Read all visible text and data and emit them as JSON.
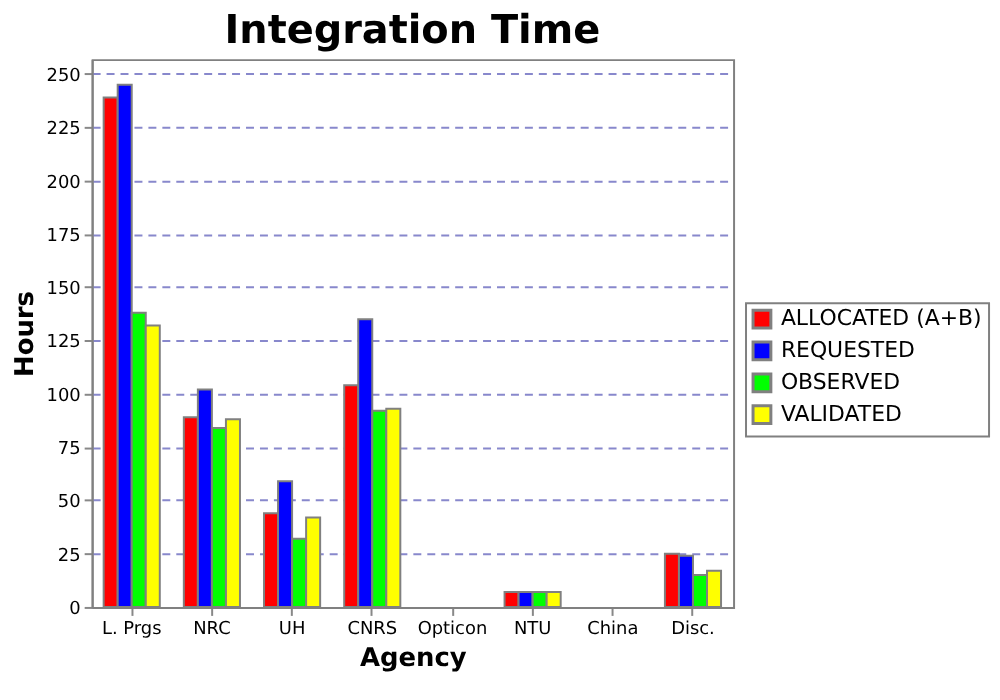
{
  "chart_data": {
    "type": "bar",
    "title": "Integration Time",
    "xlabel": "Agency",
    "ylabel": "Hours",
    "categories": [
      "L. Prgs",
      "NRC",
      "UH",
      "CNRS",
      "Opticon",
      "NTU",
      "China",
      "Disc."
    ],
    "series": [
      {
        "name": "ALLOCATED (A+B)",
        "color": "#ff0000",
        "values": [
          239,
          89,
          44,
          104,
          null,
          7,
          null,
          25
        ]
      },
      {
        "name": "REQUESTED",
        "color": "#0000ff",
        "values": [
          245,
          102,
          59,
          135,
          null,
          7,
          null,
          24
        ]
      },
      {
        "name": "OBSERVED",
        "color": "#00ff00",
        "values": [
          138,
          84,
          32,
          92,
          null,
          7,
          null,
          15
        ]
      },
      {
        "name": "VALIDATED",
        "color": "#ffff00",
        "values": [
          132,
          88,
          42,
          93,
          null,
          7,
          null,
          17
        ]
      }
    ],
    "ylim": [
      0,
      257
    ],
    "yticks": [
      0,
      25,
      50,
      75,
      100,
      125,
      150,
      175,
      200,
      225,
      250
    ],
    "grid": "y",
    "legend": "right"
  }
}
